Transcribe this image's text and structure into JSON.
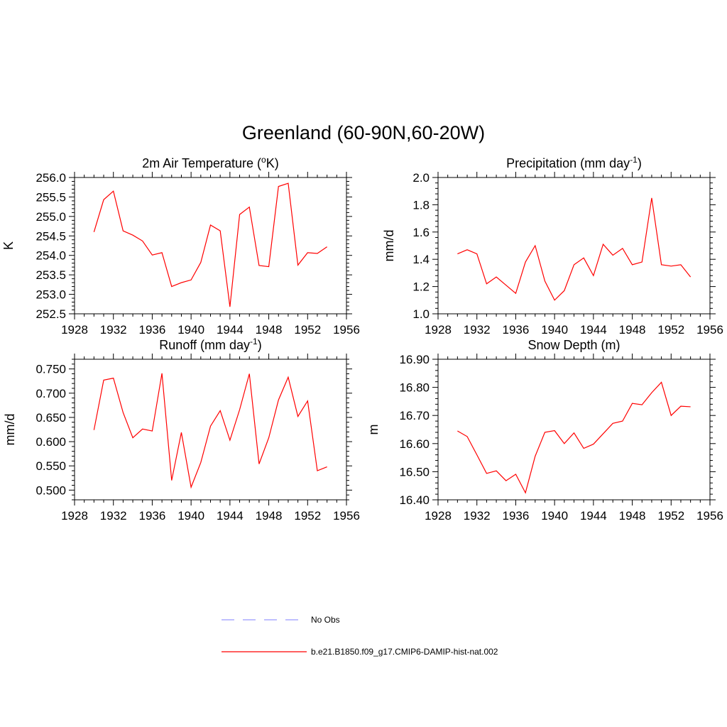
{
  "figure": {
    "title": "Greenland (60-90N,60-20W)"
  },
  "legend": [
    {
      "label": "No Obs",
      "color": "#9999ff",
      "dashed": true
    },
    {
      "label": "b.e21.B1850.f09_g17.CMIP6-DAMIP-hist-nat.002",
      "color": "#ff0000",
      "dashed": false
    }
  ],
  "chart_data": [
    {
      "type": "line",
      "title": "2m Air Temperature (",
      "title_sup": "o",
      "title_suffix": "K)",
      "ylabel": "K",
      "xlabel": "",
      "xlim": [
        1928,
        1956
      ],
      "ylim": [
        252.5,
        256.0
      ],
      "x_ticks": [
        1928,
        1932,
        1936,
        1940,
        1944,
        1948,
        1952,
        1956
      ],
      "x_tick_labels": [
        "1928",
        "1932",
        "1936",
        "1940",
        "1944",
        "1948",
        "1952",
        "1956"
      ],
      "y_ticks": [
        252.5,
        253.0,
        253.5,
        254.0,
        254.5,
        255.0,
        255.5,
        256.0
      ],
      "y_tick_labels": [
        "252.5",
        "253.0",
        "253.5",
        "254.0",
        "254.5",
        "255.0",
        "255.5",
        "256.0"
      ],
      "x": [
        1930,
        1931,
        1932,
        1933,
        1934,
        1935,
        1936,
        1937,
        1938,
        1939,
        1940,
        1941,
        1942,
        1943,
        1944,
        1945,
        1946,
        1947,
        1948,
        1949,
        1950,
        1951,
        1952,
        1953,
        1954
      ],
      "series": [
        {
          "color": "#ff0000",
          "values": [
            254.6,
            255.43,
            255.65,
            254.63,
            254.52,
            254.37,
            254.01,
            254.07,
            253.2,
            253.3,
            253.37,
            253.82,
            254.78,
            254.63,
            252.68,
            255.05,
            255.24,
            253.74,
            253.71,
            255.77,
            255.85,
            253.75,
            254.07,
            254.05,
            254.22
          ]
        }
      ]
    },
    {
      "type": "line",
      "title": "Precipitation (mm day",
      "title_sup": "-1",
      "title_suffix": ")",
      "ylabel": "mm/d",
      "xlabel": "",
      "xlim": [
        1928,
        1956
      ],
      "ylim": [
        1.0,
        2.0
      ],
      "x_ticks": [
        1928,
        1932,
        1936,
        1940,
        1944,
        1948,
        1952,
        1956
      ],
      "x_tick_labels": [
        "1928",
        "1932",
        "1936",
        "1940",
        "1944",
        "1948",
        "1952",
        "1956"
      ],
      "y_ticks": [
        1.0,
        1.2,
        1.4,
        1.6,
        1.8,
        2.0
      ],
      "y_tick_labels": [
        "1.0",
        "1.2",
        "1.4",
        "1.6",
        "1.8",
        "2.0"
      ],
      "x": [
        1930,
        1931,
        1932,
        1933,
        1934,
        1935,
        1936,
        1937,
        1938,
        1939,
        1940,
        1941,
        1942,
        1943,
        1944,
        1945,
        1946,
        1947,
        1948,
        1949,
        1950,
        1951,
        1952,
        1953,
        1954
      ],
      "series": [
        {
          "color": "#ff0000",
          "values": [
            1.44,
            1.47,
            1.44,
            1.22,
            1.27,
            1.21,
            1.15,
            1.38,
            1.5,
            1.24,
            1.1,
            1.17,
            1.36,
            1.41,
            1.28,
            1.51,
            1.43,
            1.48,
            1.36,
            1.38,
            1.85,
            1.36,
            1.35,
            1.36,
            1.27
          ]
        }
      ]
    },
    {
      "type": "line",
      "title": "Runoff (mm day",
      "title_sup": "-1",
      "title_suffix": ")",
      "ylabel": "mm/d",
      "xlabel": "",
      "xlim": [
        1928,
        1956
      ],
      "ylim": [
        0.48,
        0.77
      ],
      "x_ticks": [
        1928,
        1932,
        1936,
        1940,
        1944,
        1948,
        1952,
        1956
      ],
      "x_tick_labels": [
        "1928",
        "1932",
        "1936",
        "1940",
        "1944",
        "1948",
        "1952",
        "1956"
      ],
      "y_ticks": [
        0.5,
        0.55,
        0.6,
        0.65,
        0.7,
        0.75
      ],
      "y_tick_labels": [
        "0.500",
        "0.550",
        "0.600",
        "0.650",
        "0.700",
        "0.750"
      ],
      "x": [
        1930,
        1931,
        1932,
        1933,
        1934,
        1935,
        1936,
        1937,
        1938,
        1939,
        1940,
        1941,
        1942,
        1943,
        1944,
        1945,
        1946,
        1947,
        1948,
        1949,
        1950,
        1951,
        1952,
        1953,
        1954
      ],
      "series": [
        {
          "color": "#ff0000",
          "values": [
            0.624,
            0.727,
            0.731,
            0.66,
            0.608,
            0.626,
            0.622,
            0.741,
            0.52,
            0.619,
            0.506,
            0.557,
            0.632,
            0.664,
            0.603,
            0.666,
            0.74,
            0.554,
            0.608,
            0.686,
            0.733,
            0.652,
            0.684,
            0.54,
            0.548
          ]
        }
      ]
    },
    {
      "type": "line",
      "title": "Snow Depth (m)",
      "title_sup": "",
      "title_suffix": "",
      "ylabel": "m",
      "xlabel": "",
      "xlim": [
        1928,
        1956
      ],
      "ylim": [
        16.4,
        16.9
      ],
      "x_ticks": [
        1928,
        1932,
        1936,
        1940,
        1944,
        1948,
        1952,
        1956
      ],
      "x_tick_labels": [
        "1928",
        "1932",
        "1936",
        "1940",
        "1944",
        "1948",
        "1952",
        "1956"
      ],
      "y_ticks": [
        16.4,
        16.5,
        16.6,
        16.7,
        16.8,
        16.9
      ],
      "y_tick_labels": [
        "16.40",
        "16.50",
        "16.60",
        "16.70",
        "16.80",
        "16.90"
      ],
      "x": [
        1930,
        1931,
        1932,
        1933,
        1934,
        1935,
        1936,
        1937,
        1938,
        1939,
        1940,
        1941,
        1942,
        1943,
        1944,
        1945,
        1946,
        1947,
        1948,
        1949,
        1950,
        1951,
        1952,
        1953,
        1954
      ],
      "series": [
        {
          "color": "#ff0000",
          "values": [
            16.645,
            16.625,
            16.56,
            16.494,
            16.503,
            16.468,
            16.491,
            16.425,
            16.555,
            16.64,
            16.646,
            16.6,
            16.638,
            16.583,
            16.598,
            16.635,
            16.672,
            16.68,
            16.743,
            16.738,
            16.781,
            16.818,
            16.7,
            16.733,
            16.731
          ]
        }
      ]
    }
  ]
}
